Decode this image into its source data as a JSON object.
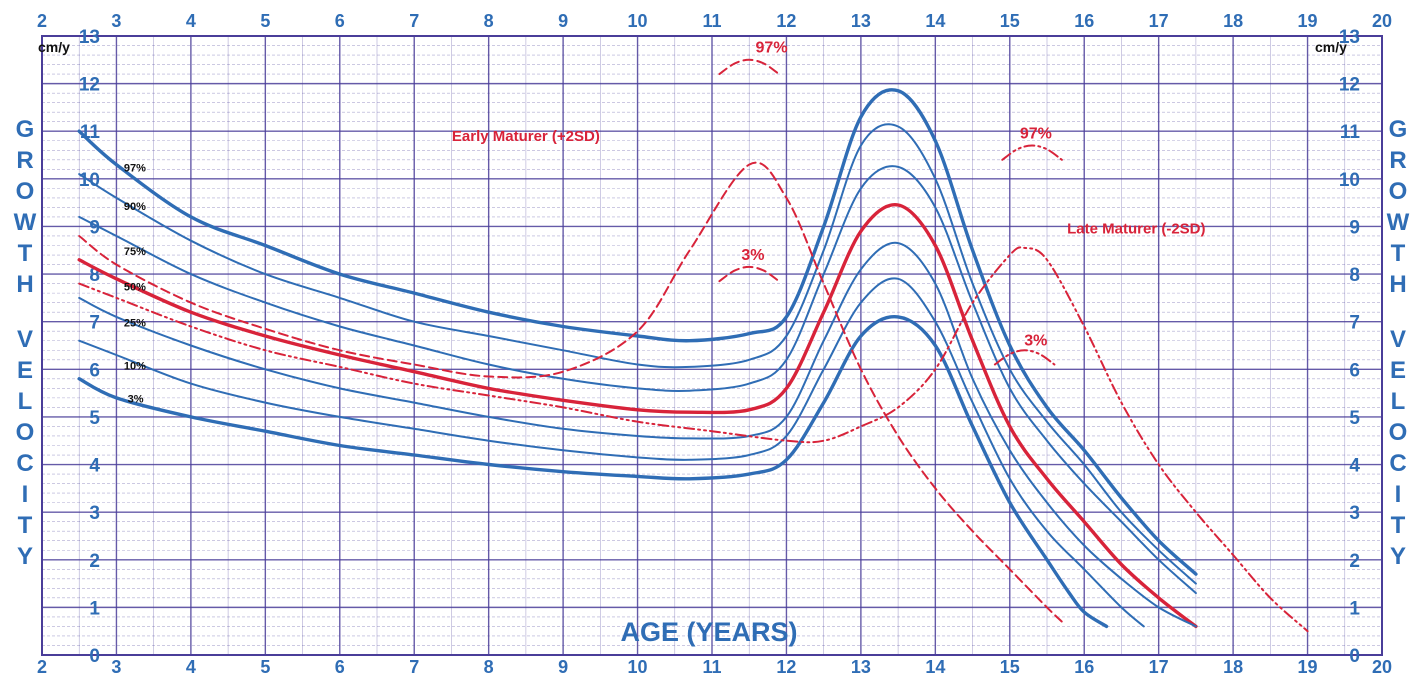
{
  "chart_data": {
    "type": "line",
    "title": "",
    "xlabel": "AGE (YEARS)",
    "ylabel": "GROWTH VELOCITY",
    "y_unit": "cm/y",
    "xlim": [
      2,
      20
    ],
    "ylim": [
      0,
      13
    ],
    "x_ticks": [
      2,
      3,
      4,
      5,
      6,
      7,
      8,
      9,
      10,
      11,
      12,
      13,
      14,
      15,
      16,
      17,
      18,
      19,
      20
    ],
    "y_ticks": [
      0,
      1,
      2,
      3,
      4,
      5,
      6,
      7,
      8,
      9,
      10,
      11,
      12,
      13
    ],
    "grid": true,
    "colors": {
      "grid": "#4a3d99",
      "blue": "#2f6db5",
      "red": "#d8233a",
      "label_blue": "#2f6db5"
    },
    "series": [
      {
        "name": "97%",
        "color": "#2f6db5",
        "style": "solid",
        "width": "bold",
        "points": [
          [
            2.5,
            11.0
          ],
          [
            3,
            10.3
          ],
          [
            4,
            9.2
          ],
          [
            5,
            8.6
          ],
          [
            6,
            8.0
          ],
          [
            7,
            7.6
          ],
          [
            8,
            7.2
          ],
          [
            9,
            6.9
          ],
          [
            10,
            6.7
          ],
          [
            10.7,
            6.6
          ],
          [
            11.5,
            6.75
          ],
          [
            12,
            7.1
          ],
          [
            12.5,
            9.0
          ],
          [
            13,
            11.3
          ],
          [
            13.5,
            11.85
          ],
          [
            14,
            10.8
          ],
          [
            14.5,
            8.5
          ],
          [
            15,
            6.5
          ],
          [
            15.5,
            5.2
          ],
          [
            16,
            4.3
          ],
          [
            16.5,
            3.3
          ],
          [
            17,
            2.4
          ],
          [
            17.5,
            1.7
          ]
        ]
      },
      {
        "name": "90%",
        "color": "#2f6db5",
        "style": "solid",
        "width": "thin",
        "points": [
          [
            2.5,
            10.1
          ],
          [
            3,
            9.6
          ],
          [
            4,
            8.7
          ],
          [
            5,
            8.0
          ],
          [
            6,
            7.5
          ],
          [
            7,
            7.0
          ],
          [
            8,
            6.7
          ],
          [
            9,
            6.4
          ],
          [
            10,
            6.1
          ],
          [
            10.7,
            6.05
          ],
          [
            11.5,
            6.2
          ],
          [
            12,
            6.7
          ],
          [
            12.5,
            8.5
          ],
          [
            13,
            10.7
          ],
          [
            13.5,
            11.1
          ],
          [
            14,
            10.0
          ],
          [
            14.5,
            7.8
          ],
          [
            15,
            6.0
          ],
          [
            15.5,
            4.9
          ],
          [
            16,
            4.0
          ],
          [
            16.5,
            3.0
          ],
          [
            17,
            2.2
          ],
          [
            17.5,
            1.5
          ]
        ]
      },
      {
        "name": "75%",
        "color": "#2f6db5",
        "style": "solid",
        "width": "thin",
        "points": [
          [
            2.5,
            9.2
          ],
          [
            3,
            8.8
          ],
          [
            4,
            8.0
          ],
          [
            5,
            7.4
          ],
          [
            6,
            6.9
          ],
          [
            7,
            6.5
          ],
          [
            8,
            6.1
          ],
          [
            9,
            5.8
          ],
          [
            10,
            5.6
          ],
          [
            10.7,
            5.55
          ],
          [
            11.5,
            5.7
          ],
          [
            12,
            6.2
          ],
          [
            12.5,
            8.0
          ],
          [
            13,
            9.8
          ],
          [
            13.5,
            10.25
          ],
          [
            14,
            9.4
          ],
          [
            14.5,
            7.4
          ],
          [
            15,
            5.6
          ],
          [
            15.5,
            4.5
          ],
          [
            16,
            3.6
          ],
          [
            16.5,
            2.8
          ],
          [
            17,
            2.0
          ],
          [
            17.5,
            1.3
          ]
        ]
      },
      {
        "name": "50%",
        "color": "#d8233a",
        "style": "solid",
        "width": "bold",
        "points": [
          [
            2.5,
            8.3
          ],
          [
            3,
            7.9
          ],
          [
            4,
            7.2
          ],
          [
            5,
            6.7
          ],
          [
            6,
            6.3
          ],
          [
            7,
            5.95
          ],
          [
            8,
            5.6
          ],
          [
            9,
            5.35
          ],
          [
            10,
            5.15
          ],
          [
            10.7,
            5.1
          ],
          [
            11.5,
            5.15
          ],
          [
            12,
            5.6
          ],
          [
            12.5,
            7.2
          ],
          [
            13,
            8.9
          ],
          [
            13.5,
            9.45
          ],
          [
            14,
            8.6
          ],
          [
            14.5,
            6.6
          ],
          [
            15,
            4.8
          ],
          [
            15.5,
            3.7
          ],
          [
            16,
            2.8
          ],
          [
            16.5,
            1.9
          ],
          [
            17,
            1.2
          ],
          [
            17.5,
            0.6
          ]
        ]
      },
      {
        "name": "25%",
        "color": "#2f6db5",
        "style": "solid",
        "width": "thin",
        "points": [
          [
            2.5,
            7.5
          ],
          [
            3,
            7.1
          ],
          [
            4,
            6.5
          ],
          [
            5,
            6.0
          ],
          [
            6,
            5.6
          ],
          [
            7,
            5.3
          ],
          [
            8,
            5.0
          ],
          [
            9,
            4.75
          ],
          [
            10,
            4.6
          ],
          [
            10.7,
            4.55
          ],
          [
            11.5,
            4.6
          ],
          [
            12,
            5.0
          ],
          [
            12.5,
            6.6
          ],
          [
            13,
            8.1
          ],
          [
            13.5,
            8.65
          ],
          [
            14,
            7.8
          ],
          [
            14.5,
            5.8
          ],
          [
            15,
            4.3
          ],
          [
            15.5,
            3.2
          ],
          [
            16,
            2.3
          ],
          [
            16.5,
            1.6
          ],
          [
            17,
            1.0
          ],
          [
            17.5,
            0.6
          ]
        ]
      },
      {
        "name": "10%",
        "color": "#2f6db5",
        "style": "solid",
        "width": "thin",
        "points": [
          [
            2.5,
            6.6
          ],
          [
            3,
            6.3
          ],
          [
            4,
            5.7
          ],
          [
            5,
            5.3
          ],
          [
            6,
            5.0
          ],
          [
            7,
            4.75
          ],
          [
            8,
            4.5
          ],
          [
            9,
            4.3
          ],
          [
            10,
            4.15
          ],
          [
            10.7,
            4.1
          ],
          [
            11.5,
            4.2
          ],
          [
            12,
            4.6
          ],
          [
            12.5,
            6.0
          ],
          [
            13,
            7.4
          ],
          [
            13.5,
            7.9
          ],
          [
            14,
            7.0
          ],
          [
            14.5,
            5.3
          ],
          [
            15,
            3.7
          ],
          [
            15.5,
            2.6
          ],
          [
            16,
            1.8
          ],
          [
            16.5,
            1.0
          ],
          [
            16.8,
            0.6
          ]
        ]
      },
      {
        "name": "3%",
        "color": "#2f6db5",
        "style": "solid",
        "width": "bold",
        "points": [
          [
            2.5,
            5.8
          ],
          [
            3,
            5.4
          ],
          [
            4,
            5.0
          ],
          [
            5,
            4.7
          ],
          [
            6,
            4.4
          ],
          [
            7,
            4.2
          ],
          [
            8,
            4.0
          ],
          [
            9,
            3.85
          ],
          [
            10,
            3.75
          ],
          [
            10.7,
            3.7
          ],
          [
            11.5,
            3.8
          ],
          [
            12,
            4.1
          ],
          [
            12.5,
            5.3
          ],
          [
            13,
            6.7
          ],
          [
            13.5,
            7.1
          ],
          [
            14,
            6.5
          ],
          [
            14.5,
            4.8
          ],
          [
            15,
            3.2
          ],
          [
            15.5,
            2.0
          ],
          [
            15.8,
            1.3
          ],
          [
            16,
            0.9
          ],
          [
            16.3,
            0.6
          ]
        ]
      },
      {
        "name": "Early Maturer (+2SD)",
        "color": "#d8233a",
        "style": "dashed",
        "width": "thin",
        "points": [
          [
            2.5,
            8.8
          ],
          [
            3,
            8.2
          ],
          [
            4,
            7.4
          ],
          [
            5,
            6.85
          ],
          [
            6,
            6.4
          ],
          [
            7,
            6.1
          ],
          [
            8,
            5.85
          ],
          [
            9,
            5.95
          ],
          [
            10,
            6.8
          ],
          [
            10.7,
            8.5
          ],
          [
            11.5,
            10.3
          ],
          [
            12,
            9.6
          ],
          [
            12.5,
            7.8
          ],
          [
            13,
            6.0
          ],
          [
            13.5,
            4.6
          ],
          [
            14,
            3.5
          ],
          [
            14.5,
            2.6
          ],
          [
            15,
            1.8
          ],
          [
            15.5,
            1.0
          ],
          [
            15.7,
            0.7
          ]
        ]
      },
      {
        "name": "Late Maturer (-2SD)",
        "color": "#d8233a",
        "style": "dashdot",
        "width": "thin",
        "points": [
          [
            2.5,
            7.8
          ],
          [
            3,
            7.5
          ],
          [
            4,
            6.9
          ],
          [
            5,
            6.4
          ],
          [
            6,
            6.05
          ],
          [
            7,
            5.7
          ],
          [
            8,
            5.45
          ],
          [
            9,
            5.2
          ],
          [
            10,
            4.9
          ],
          [
            11,
            4.7
          ],
          [
            12,
            4.5
          ],
          [
            12.5,
            4.5
          ],
          [
            13,
            4.8
          ],
          [
            13.5,
            5.2
          ],
          [
            14,
            6.0
          ],
          [
            14.5,
            7.4
          ],
          [
            15,
            8.4
          ],
          [
            15.2,
            8.55
          ],
          [
            15.5,
            8.3
          ],
          [
            16,
            6.9
          ],
          [
            16.5,
            5.3
          ],
          [
            17,
            4.0
          ],
          [
            17.5,
            3.0
          ],
          [
            18,
            2.1
          ],
          [
            18.5,
            1.2
          ],
          [
            19,
            0.5
          ]
        ]
      },
      {
        "name": "97%",
        "color": "#d8233a",
        "style": "dashed",
        "width": "thin",
        "points": [
          [
            11.1,
            12.2
          ],
          [
            11.3,
            12.42
          ],
          [
            11.5,
            12.5
          ],
          [
            11.7,
            12.42
          ],
          [
            11.9,
            12.2
          ]
        ]
      },
      {
        "name": "3%",
        "color": "#d8233a",
        "style": "dashed",
        "width": "thin",
        "points": [
          [
            11.1,
            7.85
          ],
          [
            11.3,
            8.07
          ],
          [
            11.5,
            8.15
          ],
          [
            11.7,
            8.07
          ],
          [
            11.9,
            7.85
          ]
        ]
      },
      {
        "name": "97%",
        "color": "#d8233a",
        "style": "dashdot",
        "width": "thin",
        "points": [
          [
            14.9,
            10.4
          ],
          [
            15.1,
            10.62
          ],
          [
            15.3,
            10.7
          ],
          [
            15.5,
            10.62
          ],
          [
            15.7,
            10.4
          ]
        ]
      },
      {
        "name": "3%",
        "color": "#d8233a",
        "style": "dashdot",
        "width": "thin",
        "points": [
          [
            14.8,
            6.1
          ],
          [
            15.0,
            6.32
          ],
          [
            15.2,
            6.4
          ],
          [
            15.4,
            6.32
          ],
          [
            15.6,
            6.1
          ]
        ]
      }
    ],
    "left_labels": [
      {
        "text": "97%",
        "x": 3.1,
        "y": 10.15
      },
      {
        "text": "90%",
        "x": 3.1,
        "y": 9.35
      },
      {
        "text": "75%",
        "x": 3.1,
        "y": 8.4
      },
      {
        "text": "50%",
        "x": 3.1,
        "y": 7.65
      },
      {
        "text": "25%",
        "x": 3.1,
        "y": 6.9
      },
      {
        "text": "10%",
        "x": 3.1,
        "y": 6.0
      },
      {
        "text": "3%",
        "x": 3.15,
        "y": 5.3
      }
    ],
    "annotations": [
      {
        "text": "97%",
        "x": 11.8,
        "y": 12.65,
        "size": 16
      },
      {
        "text": "Early Maturer (+2SD)",
        "x": 8.5,
        "y": 10.8,
        "size": 15
      },
      {
        "text": "3%",
        "x": 11.55,
        "y": 8.3,
        "size": 16
      },
      {
        "text": "97%",
        "x": 15.35,
        "y": 10.85,
        "size": 16
      },
      {
        "text": "Late Maturer (-2SD)",
        "x": 16.7,
        "y": 8.85,
        "size": 15
      },
      {
        "text": "3%",
        "x": 15.35,
        "y": 6.5,
        "size": 16
      }
    ]
  },
  "side_label": "GROWTH VELOCITY"
}
